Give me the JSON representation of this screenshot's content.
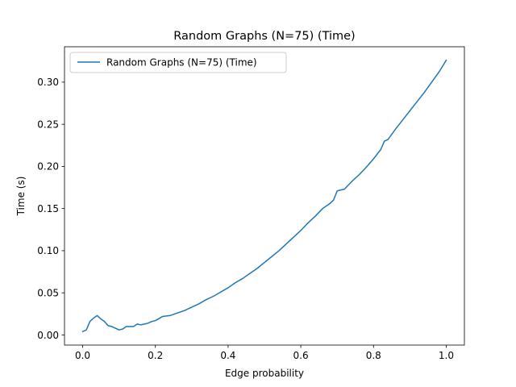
{
  "chart_data": {
    "type": "line",
    "title": "Random Graphs (N=75) (Time)",
    "xlabel": "Edge probability",
    "ylabel": "Time (s)",
    "xlim": [
      -0.05,
      1.05
    ],
    "ylim": [
      -0.012,
      0.342
    ],
    "xticks": [
      0.0,
      0.2,
      0.4,
      0.6,
      0.8,
      1.0
    ],
    "xtick_labels": [
      "0.0",
      "0.2",
      "0.4",
      "0.6",
      "0.8",
      "1.0"
    ],
    "yticks": [
      0.0,
      0.05,
      0.1,
      0.15,
      0.2,
      0.25,
      0.3
    ],
    "ytick_labels": [
      "0.00",
      "0.05",
      "0.10",
      "0.15",
      "0.20",
      "0.25",
      "0.30"
    ],
    "grid": false,
    "legend_position": "upper-left",
    "series": [
      {
        "name": "Random Graphs (N=75) (Time)",
        "color": "#1f77b4",
        "x": [
          0.0,
          0.01,
          0.02,
          0.03,
          0.04,
          0.05,
          0.06,
          0.07,
          0.08,
          0.09,
          0.1,
          0.11,
          0.12,
          0.13,
          0.14,
          0.15,
          0.16,
          0.17,
          0.18,
          0.19,
          0.2,
          0.22,
          0.24,
          0.26,
          0.28,
          0.3,
          0.32,
          0.34,
          0.36,
          0.38,
          0.4,
          0.42,
          0.44,
          0.46,
          0.48,
          0.5,
          0.52,
          0.54,
          0.56,
          0.58,
          0.6,
          0.62,
          0.64,
          0.66,
          0.68,
          0.69,
          0.7,
          0.72,
          0.74,
          0.76,
          0.78,
          0.8,
          0.82,
          0.83,
          0.84,
          0.86,
          0.88,
          0.9,
          0.92,
          0.94,
          0.96,
          0.98,
          1.0
        ],
        "values": [
          0.004,
          0.006,
          0.016,
          0.02,
          0.023,
          0.019,
          0.016,
          0.011,
          0.01,
          0.008,
          0.006,
          0.007,
          0.01,
          0.01,
          0.01,
          0.013,
          0.012,
          0.013,
          0.014,
          0.016,
          0.017,
          0.022,
          0.023,
          0.026,
          0.029,
          0.033,
          0.037,
          0.042,
          0.046,
          0.051,
          0.056,
          0.062,
          0.067,
          0.073,
          0.079,
          0.086,
          0.093,
          0.1,
          0.108,
          0.116,
          0.124,
          0.133,
          0.141,
          0.15,
          0.156,
          0.16,
          0.171,
          0.173,
          0.182,
          0.19,
          0.199,
          0.209,
          0.22,
          0.23,
          0.232,
          0.244,
          0.255,
          0.266,
          0.277,
          0.288,
          0.3,
          0.312,
          0.326
        ]
      }
    ]
  }
}
